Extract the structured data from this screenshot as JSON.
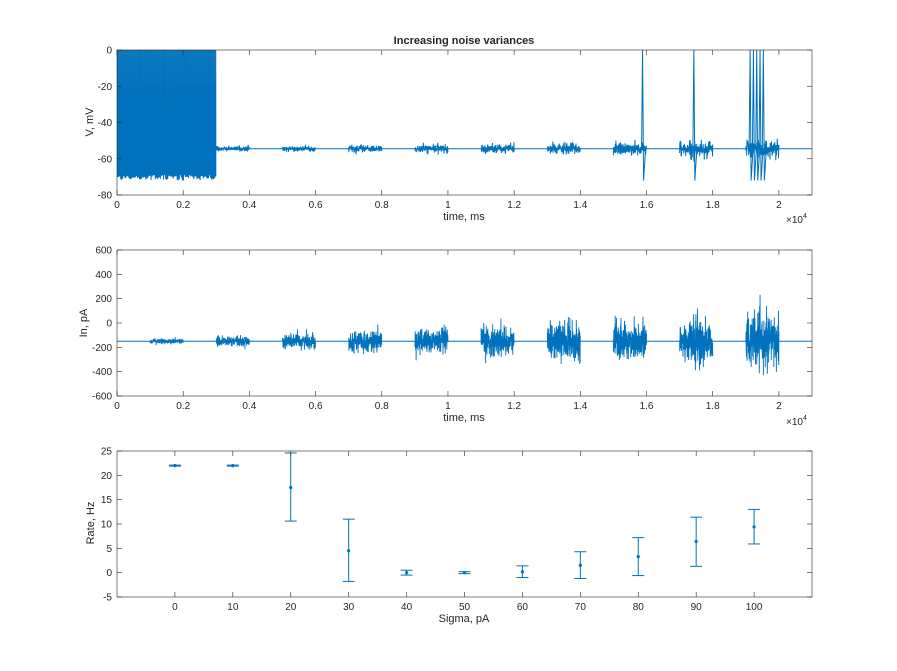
{
  "figure": {
    "background": "#ffffff",
    "line_color": "#0072bd",
    "axis_color": "#262626"
  },
  "chart_data": [
    {
      "type": "line",
      "title": "Increasing noise variances",
      "xlabel": "time, ms",
      "ylabel": "V, mV",
      "xlim": [
        0,
        21000
      ],
      "ylim": [
        -80,
        0
      ],
      "xticks": [
        0,
        2000,
        4000,
        6000,
        8000,
        10000,
        12000,
        14000,
        16000,
        18000,
        20000
      ],
      "xtick_labels": [
        "0",
        "0.2",
        "0.4",
        "0.6",
        "0.8",
        "1",
        "1.2",
        "1.4",
        "1.6",
        "1.8",
        "2"
      ],
      "x_exponent_label": "×10",
      "x_exponent": "4",
      "yticks": [
        -80,
        -60,
        -40,
        -20,
        0
      ],
      "ytick_labels": [
        "-80",
        "-60",
        "-40",
        "-20",
        "0"
      ],
      "grid": false,
      "baseline": -54.5,
      "segments": [
        {
          "start": 0,
          "end": 3000,
          "mode": "spiking",
          "sigma": 0
        },
        {
          "start": 3000,
          "end": 4000,
          "mode": "noise",
          "sigma": 0.6
        },
        {
          "start": 5000,
          "end": 6000,
          "mode": "noise",
          "sigma": 0.7
        },
        {
          "start": 7000,
          "end": 8000,
          "mode": "noise",
          "sigma": 0.9
        },
        {
          "start": 9000,
          "end": 10000,
          "mode": "noise",
          "sigma": 1.1
        },
        {
          "start": 11000,
          "end": 12000,
          "mode": "noise",
          "sigma": 1.3
        },
        {
          "start": 13000,
          "end": 14000,
          "mode": "noise",
          "sigma": 1.5
        },
        {
          "start": 15000,
          "end": 16000,
          "mode": "noise",
          "sigma": 1.8
        },
        {
          "start": 17000,
          "end": 18000,
          "mode": "noise",
          "sigma": 2.1
        },
        {
          "start": 19000,
          "end": 20000,
          "mode": "noise",
          "sigma": 2.6
        }
      ],
      "spikes": [
        15850,
        17400,
        19100,
        19200,
        19300,
        19400,
        19500
      ]
    },
    {
      "type": "line",
      "xlabel": "time, ms",
      "ylabel": "In, pA",
      "xlim": [
        0,
        21000
      ],
      "ylim": [
        -600,
        600
      ],
      "xticks": [
        0,
        2000,
        4000,
        6000,
        8000,
        10000,
        12000,
        14000,
        16000,
        18000,
        20000
      ],
      "xtick_labels": [
        "0",
        "0.2",
        "0.4",
        "0.6",
        "0.8",
        "1",
        "1.2",
        "1.4",
        "1.6",
        "1.8",
        "2"
      ],
      "x_exponent_label": "×10",
      "x_exponent": "4",
      "yticks": [
        -600,
        -400,
        -200,
        0,
        200,
        400,
        600
      ],
      "ytick_labels": [
        "-600",
        "-400",
        "-200",
        "0",
        "200",
        "400",
        "600"
      ],
      "grid": false,
      "baseline": -150,
      "segments": [
        {
          "start": 1000,
          "end": 2000,
          "sigma": 10
        },
        {
          "start": 3000,
          "end": 4000,
          "sigma": 20
        },
        {
          "start": 5000,
          "end": 6000,
          "sigma": 30
        },
        {
          "start": 7000,
          "end": 8000,
          "sigma": 40
        },
        {
          "start": 9000,
          "end": 10000,
          "sigma": 50
        },
        {
          "start": 11000,
          "end": 12000,
          "sigma": 60
        },
        {
          "start": 13000,
          "end": 14000,
          "sigma": 70
        },
        {
          "start": 15000,
          "end": 16000,
          "sigma": 80
        },
        {
          "start": 17000,
          "end": 18000,
          "sigma": 90
        },
        {
          "start": 19000,
          "end": 20000,
          "sigma": 100
        }
      ]
    },
    {
      "type": "scatter",
      "xlabel": "Sigma, pA",
      "ylabel": "Rate, Hz",
      "xlim": [
        -10,
        110
      ],
      "ylim": [
        -5,
        25
      ],
      "xticks": [
        0,
        10,
        20,
        30,
        40,
        50,
        60,
        70,
        80,
        90,
        100
      ],
      "xtick_labels": [
        "0",
        "10",
        "20",
        "30",
        "40",
        "50",
        "60",
        "70",
        "80",
        "90",
        "100"
      ],
      "yticks": [
        -5,
        0,
        5,
        10,
        15,
        20,
        25
      ],
      "ytick_labels": [
        "-5",
        "0",
        "5",
        "10",
        "15",
        "20",
        "25"
      ],
      "grid": false,
      "points": [
        {
          "x": 0,
          "y": 22.0,
          "lo": 21.9,
          "hi": 22.1
        },
        {
          "x": 10,
          "y": 22.0,
          "lo": 21.9,
          "hi": 22.1
        },
        {
          "x": 20,
          "y": 17.5,
          "lo": 10.6,
          "hi": 24.6
        },
        {
          "x": 30,
          "y": 4.5,
          "lo": -1.8,
          "hi": 11.0
        },
        {
          "x": 40,
          "y": 0.0,
          "lo": -0.5,
          "hi": 0.5
        },
        {
          "x": 50,
          "y": 0.0,
          "lo": -0.2,
          "hi": 0.2
        },
        {
          "x": 60,
          "y": 0.2,
          "lo": -1.0,
          "hi": 1.4
        },
        {
          "x": 70,
          "y": 1.5,
          "lo": -1.2,
          "hi": 4.3
        },
        {
          "x": 80,
          "y": 3.3,
          "lo": -0.6,
          "hi": 7.2
        },
        {
          "x": 90,
          "y": 6.4,
          "lo": 1.3,
          "hi": 11.4
        },
        {
          "x": 100,
          "y": 9.4,
          "lo": 5.9,
          "hi": 13.0
        }
      ]
    }
  ]
}
